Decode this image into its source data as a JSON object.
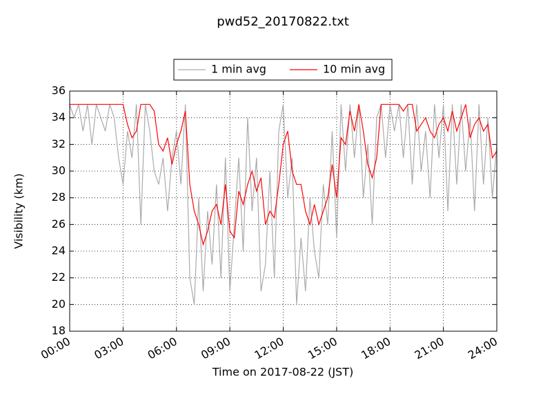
{
  "chart_data": {
    "type": "line",
    "title": "pwd52_20170822.txt",
    "x_label": "Time on 2017-08-22 (JST)",
    "y_label": "Visibility (km)",
    "xlim": [
      0,
      24
    ],
    "ylim": [
      18,
      36
    ],
    "yticks": [
      18,
      20,
      22,
      24,
      26,
      28,
      30,
      32,
      34,
      36
    ],
    "xticks": [
      {
        "value": 0,
        "label": "00:00"
      },
      {
        "value": 3,
        "label": "03:00"
      },
      {
        "value": 6,
        "label": "06:00"
      },
      {
        "value": 9,
        "label": "09:00"
      },
      {
        "value": 12,
        "label": "12:00"
      },
      {
        "value": 15,
        "label": "15:00"
      },
      {
        "value": 18,
        "label": "18:00"
      },
      {
        "value": 21,
        "label": "21:00"
      },
      {
        "value": 24,
        "label": "24:00"
      }
    ],
    "grid": true,
    "legend": "upper center",
    "x": [
      0,
      0.25,
      0.5,
      0.75,
      1,
      1.25,
      1.5,
      1.75,
      2,
      2.25,
      2.5,
      2.75,
      3,
      3.25,
      3.5,
      3.75,
      4,
      4.25,
      4.5,
      4.75,
      5,
      5.25,
      5.5,
      5.75,
      6,
      6.25,
      6.5,
      6.75,
      7,
      7.25,
      7.5,
      7.75,
      8,
      8.25,
      8.5,
      8.75,
      9,
      9.25,
      9.5,
      9.75,
      10,
      10.25,
      10.5,
      10.75,
      11,
      11.25,
      11.5,
      11.75,
      12,
      12.25,
      12.5,
      12.75,
      13,
      13.25,
      13.5,
      13.75,
      14,
      14.25,
      14.5,
      14.75,
      15,
      15.25,
      15.5,
      15.75,
      16,
      16.25,
      16.5,
      16.75,
      17,
      17.25,
      17.5,
      17.75,
      18,
      18.25,
      18.5,
      18.75,
      19,
      19.25,
      19.5,
      19.75,
      20,
      20.25,
      20.5,
      20.75,
      21,
      21.25,
      21.5,
      21.75,
      22,
      22.25,
      22.5,
      22.75,
      23,
      23.25,
      23.5,
      23.75,
      24
    ],
    "series": [
      {
        "name": "1 min avg",
        "color": "#aaaaaa",
        "values": [
          35,
          34,
          35,
          33,
          35,
          32,
          35,
          34,
          33,
          35,
          34,
          31,
          29,
          33,
          31,
          35,
          26,
          35,
          33,
          30,
          29,
          31,
          27,
          31,
          33,
          29,
          35,
          22,
          20,
          28,
          21,
          27,
          23,
          29,
          22,
          31,
          21,
          26,
          31,
          24,
          34,
          27,
          31,
          21,
          23,
          30,
          22,
          33,
          35,
          28,
          31,
          20,
          25,
          21,
          28,
          24,
          22,
          29,
          26,
          33,
          25,
          35,
          30,
          35,
          31,
          35,
          28,
          32,
          26,
          34,
          35,
          31,
          35,
          33,
          35,
          31,
          35,
          29,
          35,
          30,
          33,
          28,
          35,
          31,
          35,
          27,
          35,
          29,
          35,
          30,
          34,
          27,
          35,
          29,
          34,
          28,
          32
        ]
      },
      {
        "name": "10 min avg",
        "color": "#ff0000",
        "values": [
          35,
          35,
          35,
          35,
          35,
          35,
          35,
          35,
          35,
          35,
          35,
          35,
          35,
          33.5,
          32.5,
          33,
          35,
          35,
          35,
          34.5,
          32,
          31.5,
          32.5,
          30.5,
          32,
          33,
          34.5,
          29,
          27,
          26,
          24.5,
          25.5,
          27,
          27.5,
          26,
          29,
          25.5,
          25,
          28.5,
          27.5,
          29,
          30,
          28.5,
          29.5,
          26,
          27,
          26.5,
          29,
          32,
          33,
          30,
          29,
          29,
          27,
          26,
          27.5,
          26,
          27,
          28,
          30.5,
          28,
          32.5,
          32,
          34.5,
          33,
          35,
          33,
          30.5,
          29.5,
          31,
          35,
          35,
          35,
          35,
          35,
          34.5,
          35,
          35,
          33,
          33.5,
          34,
          33,
          32.5,
          33.5,
          34,
          33,
          34.5,
          33,
          34,
          35,
          32.5,
          33.5,
          34,
          33,
          33.5,
          31,
          31.5
        ]
      }
    ]
  }
}
